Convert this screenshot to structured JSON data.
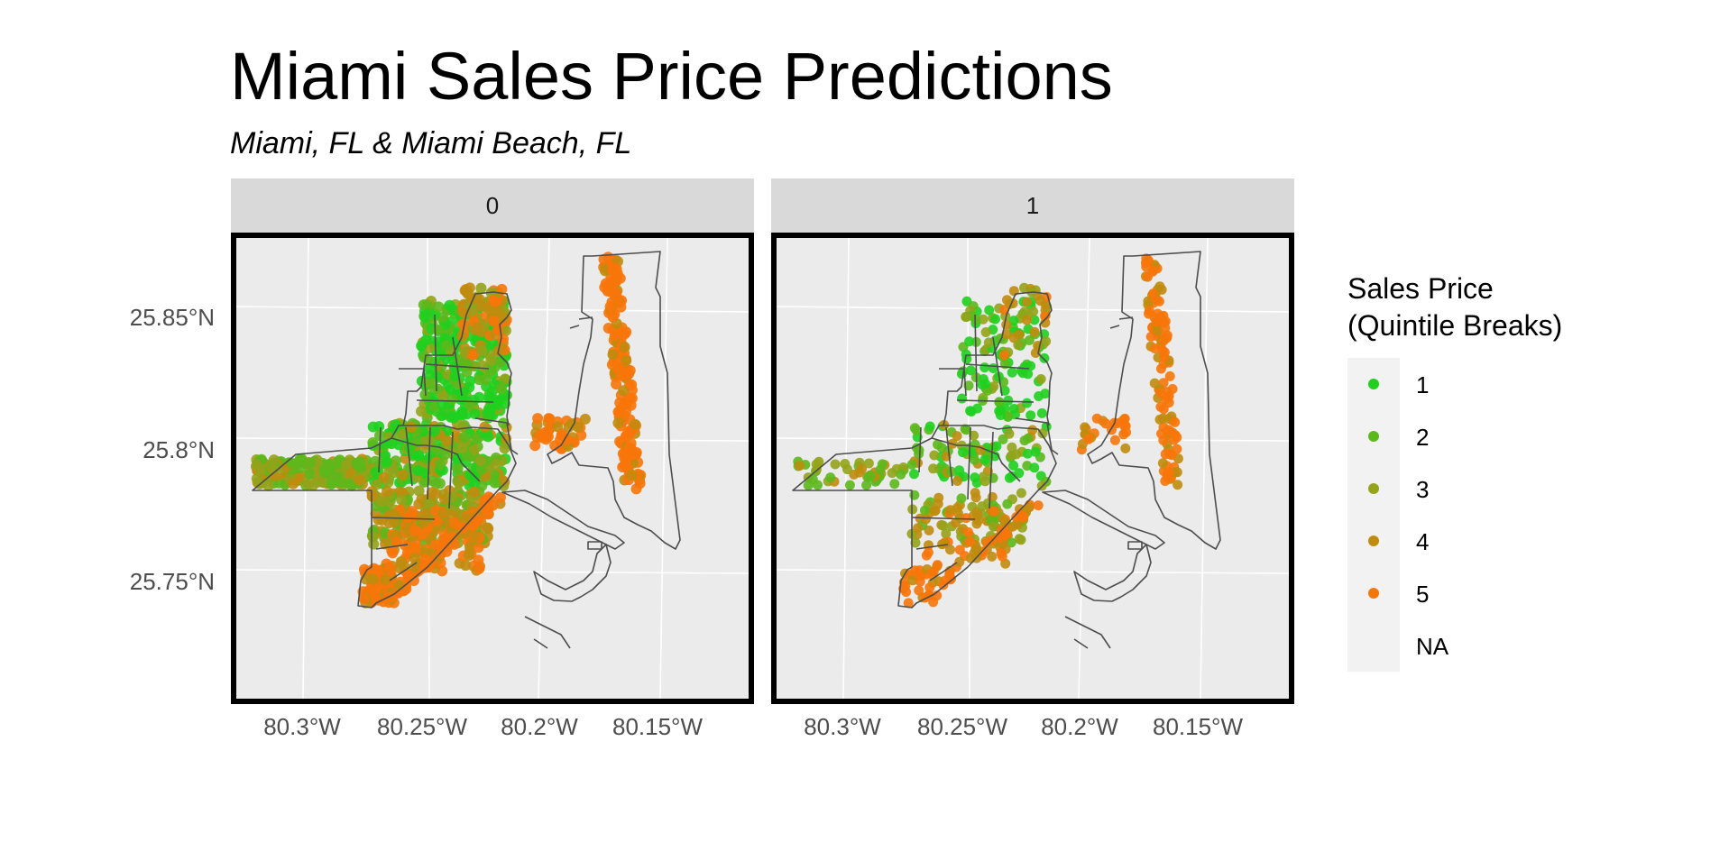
{
  "title": "Miami Sales Price Predictions",
  "subtitle": "Miami, FL & Miami Beach, FL",
  "facets": [
    {
      "label": "0",
      "scatter": "dense"
    },
    {
      "label": "1",
      "scatter": "sparse"
    }
  ],
  "x_ticks": [
    "80.3°W",
    "80.25°W",
    "80.2°W",
    "80.15°W"
  ],
  "y_ticks": [
    "25.85°N",
    "25.8°N",
    "25.75°N"
  ],
  "legend": {
    "title_line1": "Sales Price",
    "title_line2": "(Quintile Breaks)",
    "items": [
      {
        "label": "1",
        "color": "#1fd01f"
      },
      {
        "label": "2",
        "color": "#5cb81c"
      },
      {
        "label": "3",
        "color": "#93a31a"
      },
      {
        "label": "4",
        "color": "#c08c0e"
      },
      {
        "label": "5",
        "color": "#f7760a"
      },
      {
        "label": "NA",
        "color": ""
      }
    ]
  },
  "colors": {
    "panel_bg": "#ebebeb",
    "grid": "#ffffff",
    "boundary": "#4d4d4d",
    "strip_bg": "#d9d9d9"
  }
}
